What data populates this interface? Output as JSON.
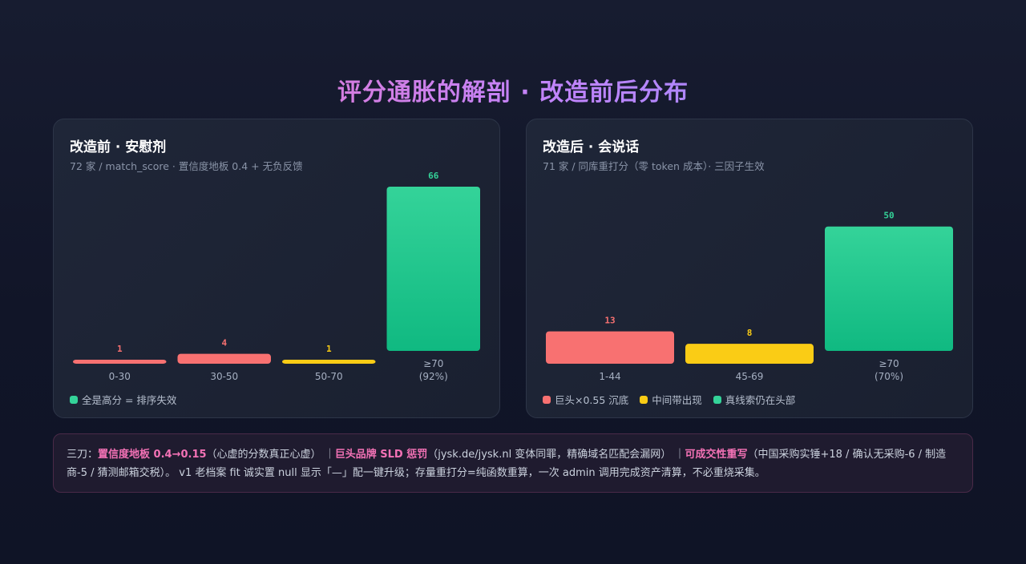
{
  "title": "评分通胀的解剖 · 改造前后分布",
  "colors": {
    "red": "#f87171",
    "yellow": "#facc15",
    "green_top": "#34d399",
    "green_bottom": "#10b981",
    "accent": "#f472b6"
  },
  "before": {
    "title": "改造前 · 安慰剂",
    "subtitle": "72 家 / match_score · 置信度地板 0.4 + 无负反馈",
    "legend": [
      {
        "label": "全是高分 = 排序失效",
        "color": "#34d399"
      }
    ]
  },
  "after": {
    "title": "改造后 · 会说话",
    "subtitle": "71 家 / 同库重打分（零 token 成本）· 三因子生效",
    "legend": [
      {
        "label": "巨头×0.55 沉底",
        "color": "#f87171"
      },
      {
        "label": "中间带出现",
        "color": "#facc15"
      },
      {
        "label": "真线索仍在头部",
        "color": "#34d399"
      }
    ]
  },
  "chart_data": [
    {
      "type": "bar",
      "title": "改造前 · 安慰剂",
      "categories": [
        "0-30",
        "30-50",
        "50-70",
        "≥70"
      ],
      "category_notes": [
        "",
        "",
        "",
        "(92%)"
      ],
      "values": [
        1,
        4,
        1,
        66
      ],
      "colors": [
        "#f87171",
        "#f87171",
        "#facc15",
        "#34d399"
      ],
      "ylim": [
        0,
        66
      ],
      "grid": false
    },
    {
      "type": "bar",
      "title": "改造后 · 会说话",
      "categories": [
        "1-44",
        "45-69",
        "≥70"
      ],
      "category_notes": [
        "",
        "",
        "(70%)"
      ],
      "values": [
        13,
        8,
        50
      ],
      "colors": [
        "#f87171",
        "#facc15",
        "#34d399"
      ],
      "ylim": [
        0,
        66
      ],
      "grid": false
    }
  ],
  "note": {
    "intro": "三刀：",
    "items": [
      {
        "head": "置信度地板 0.4→0.15",
        "body": "（心虚的分数真正心虚）"
      },
      {
        "head": "巨头品牌 SLD 惩罚",
        "body": "（jysk.de/jysk.nl 变体同罪，精确域名匹配会漏网）"
      },
      {
        "head": "可成交性重写",
        "body": "（中国采购实锤+18 / 确认无采购-6 / 制造商-5 / 猜测邮箱交税）。"
      }
    ],
    "separator": "｜",
    "tail": "v1 老档案 fit 诚实置 null 显示「—」配一键升级；存量重打分=纯函数重算，一次 admin 调用完成资产清算，不必重烧采集。"
  }
}
